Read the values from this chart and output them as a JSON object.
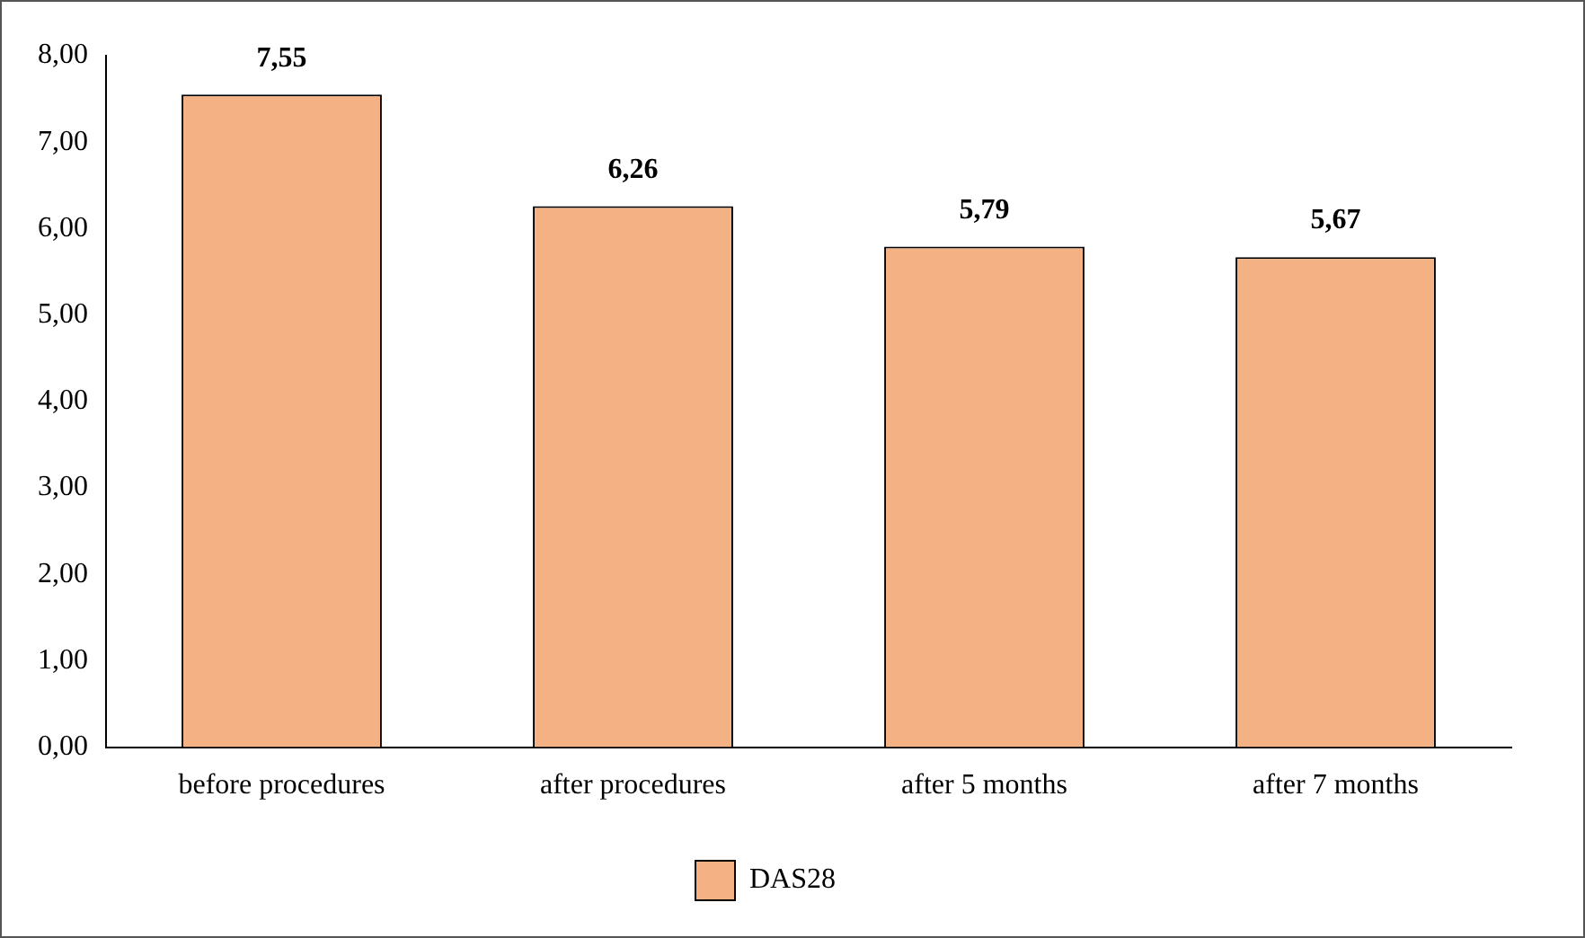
{
  "chart_data": {
    "type": "bar",
    "categories": [
      "before procedures",
      "after procedures",
      "after 5 months",
      "after 7 months"
    ],
    "series": [
      {
        "name": "DAS28",
        "color": "#f4b183",
        "values": [
          7.55,
          6.26,
          5.79,
          5.67
        ],
        "value_labels": [
          "7,55",
          "6,26",
          "5,79",
          "5,67"
        ]
      }
    ],
    "ylim": [
      0,
      8
    ],
    "yticks": [
      {
        "value": 0,
        "label": "0,00"
      },
      {
        "value": 1,
        "label": "1,00"
      },
      {
        "value": 2,
        "label": "2,00"
      },
      {
        "value": 3,
        "label": "3,00"
      },
      {
        "value": 4,
        "label": "4,00"
      },
      {
        "value": 5,
        "label": "5,00"
      },
      {
        "value": 6,
        "label": "6,00"
      },
      {
        "value": 7,
        "label": "7,00"
      },
      {
        "value": 8,
        "label": "8,00"
      }
    ],
    "grid": false,
    "legend": "bottom"
  }
}
